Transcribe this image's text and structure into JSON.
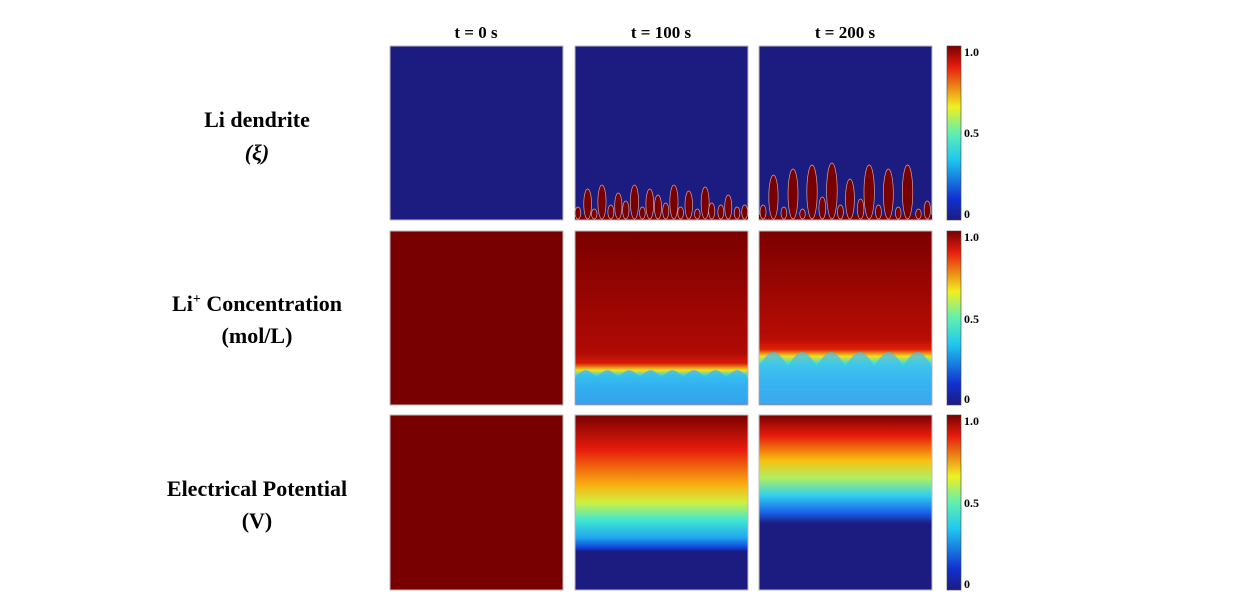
{
  "chart_data": {
    "type": "heatmap",
    "columns": [
      "t = 0 s",
      "t = 100 s",
      "t = 200 s"
    ],
    "rows": [
      {
        "label": "Li dendrite",
        "unit": "(ξ)",
        "colorbar_ticks": [
          "1.0",
          "0.5",
          "0"
        ],
        "range": [
          0,
          1.0
        ]
      },
      {
        "label": "Li",
        "label_sup": "+",
        "label_rest": " Concentration",
        "unit": "(mol/L)",
        "colorbar_ticks": [
          "1.0",
          "0.5",
          "0"
        ],
        "range": [
          0,
          1.0
        ]
      },
      {
        "label": "Electrical Potential",
        "unit": "(V)",
        "colorbar_ticks": [
          "1.0",
          "0.5",
          "0"
        ],
        "range": [
          0,
          1.0
        ]
      }
    ],
    "colormap": "jet",
    "colors": {
      "low": "#1c1c80",
      "high": "#780000"
    }
  }
}
